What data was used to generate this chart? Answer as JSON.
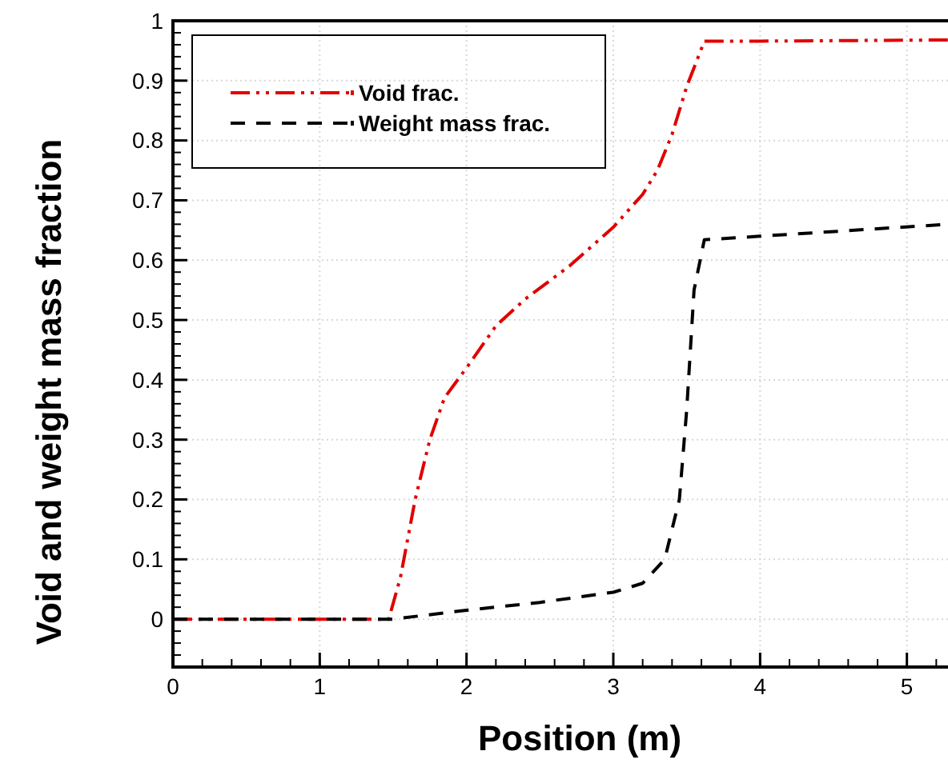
{
  "chart_data": {
    "type": "line",
    "xlabel": "Position (m)",
    "ylabel": "Void and weight mass fraction",
    "xlim": [
      0,
      5.28
    ],
    "ylim": [
      -0.08,
      1
    ],
    "xticks": [
      0,
      1,
      2,
      3,
      4,
      5
    ],
    "yticks": [
      0,
      0.1,
      0.2,
      0.3,
      0.4,
      0.5,
      0.6,
      0.7,
      0.8,
      0.9,
      1
    ],
    "grid": true,
    "legend": "top left",
    "marker": "none",
    "series": [
      {
        "name": "Void frac.",
        "color": "#e00000",
        "line_style": "dashdot",
        "x": [
          0,
          1.47,
          1.55,
          1.65,
          1.75,
          1.85,
          2,
          2.2,
          2.4,
          2.7,
          3,
          3.2,
          3.3,
          3.4,
          3.5,
          3.62,
          4,
          5.28
        ],
        "values": [
          0,
          0,
          0.07,
          0.2,
          0.3,
          0.37,
          0.42,
          0.49,
          0.535,
          0.59,
          0.655,
          0.71,
          0.75,
          0.81,
          0.89,
          0.966,
          0.966,
          0.968
        ]
      },
      {
        "name": "Weight mass frac.",
        "color": "#000000",
        "line_style": "dashed",
        "x": [
          0,
          1.5,
          2,
          2.5,
          3,
          3.2,
          3.35,
          3.45,
          3.5,
          3.55,
          3.62,
          4,
          5.28
        ],
        "values": [
          0,
          0,
          0.015,
          0.028,
          0.045,
          0.06,
          0.1,
          0.2,
          0.35,
          0.55,
          0.634,
          0.64,
          0.66
        ]
      }
    ]
  }
}
